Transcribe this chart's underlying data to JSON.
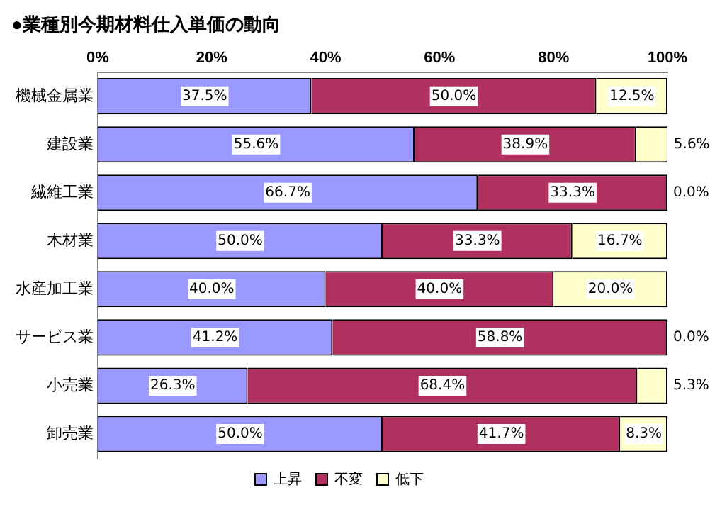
{
  "chart_data": {
    "type": "bar",
    "orientation": "horizontal",
    "stacked": true,
    "title": "●業種別今期材料仕入単価の動向",
    "categories": [
      "機械金属業",
      "建設業",
      "繊維工業",
      "木材業",
      "水産加工業",
      "サービス業",
      "小売業",
      "卸売業"
    ],
    "series": [
      {
        "name": "上昇",
        "color": "#9999ff",
        "values": [
          37.5,
          55.6,
          66.7,
          50.0,
          40.0,
          41.2,
          26.3,
          50.0
        ],
        "value_labels": [
          "37.5%",
          "55.6%",
          "66.7%",
          "50.0%",
          "40.0%",
          "41.2%",
          "26.3%",
          "50.0%"
        ]
      },
      {
        "name": "不変",
        "color": "#b03060",
        "values": [
          50.0,
          38.9,
          33.3,
          33.3,
          40.0,
          58.8,
          68.4,
          41.7
        ],
        "value_labels": [
          "50.0%",
          "38.9%",
          "33.3%",
          "33.3%",
          "40.0%",
          "58.8%",
          "68.4%",
          "41.7%"
        ]
      },
      {
        "name": "低下",
        "color": "#ffffcc",
        "values": [
          12.5,
          5.6,
          0.0,
          16.7,
          20.0,
          0.0,
          5.3,
          8.3
        ],
        "value_labels": [
          "12.5%",
          "5.6%",
          "0.0%",
          "16.7%",
          "20.0%",
          "0.0%",
          "5.3%",
          "8.3%"
        ]
      }
    ],
    "xlim": [
      0,
      100
    ],
    "xticks": [
      {
        "value": 0,
        "label": "0%"
      },
      {
        "value": 20,
        "label": "20%"
      },
      {
        "value": 40,
        "label": "40%"
      },
      {
        "value": 60,
        "label": "60%"
      },
      {
        "value": 80,
        "label": "80%"
      },
      {
        "value": 100,
        "label": "100%"
      }
    ],
    "grid": false,
    "legend": "bottom"
  }
}
